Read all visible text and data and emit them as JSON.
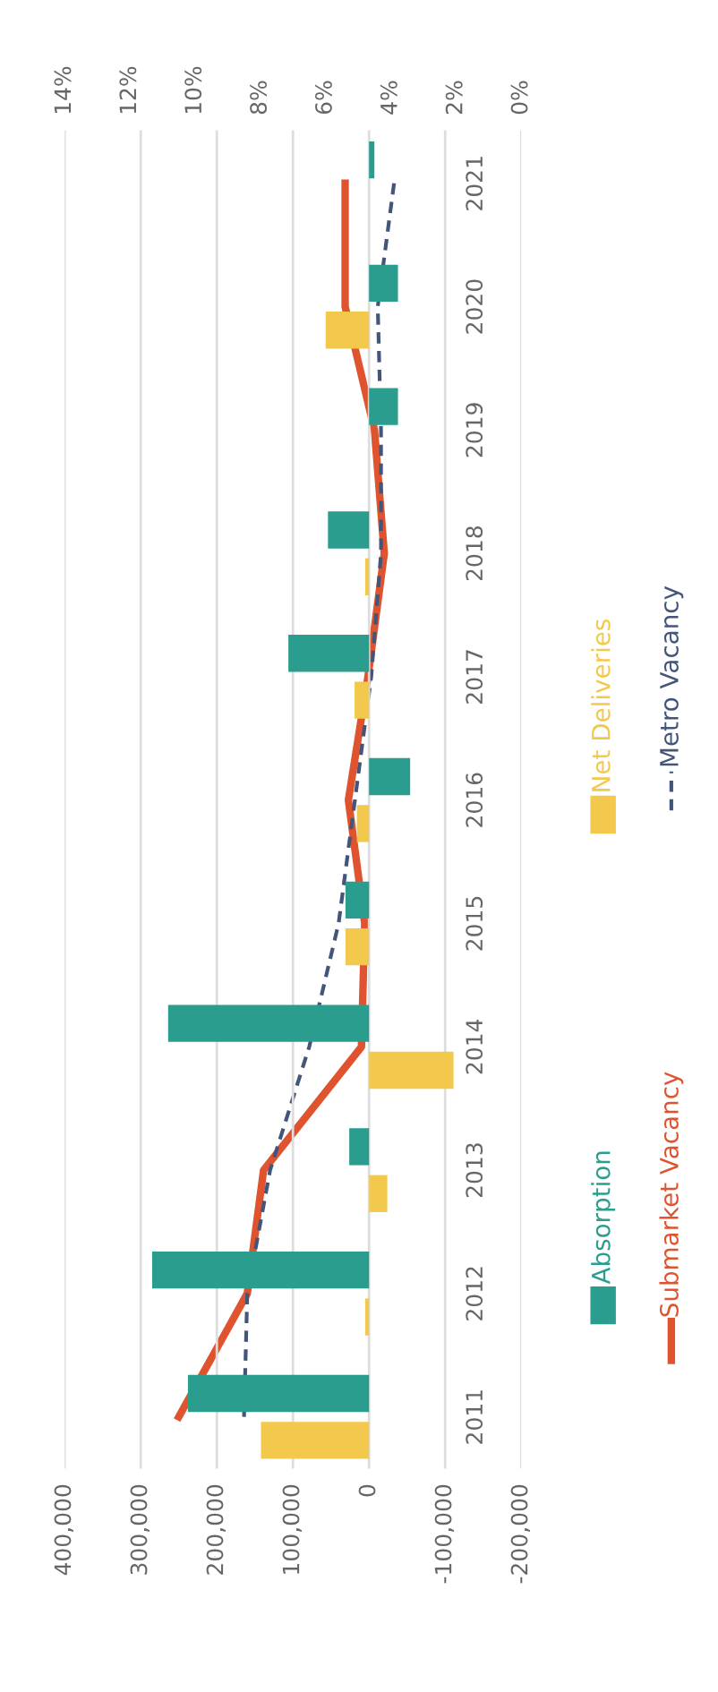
{
  "chart_data": {
    "type": "bar",
    "orientation": "horizontal",
    "categories": [
      "2021",
      "2020",
      "2019",
      "2018",
      "2017",
      "2016",
      "2015",
      "2014",
      "2013",
      "2012",
      "2011"
    ],
    "series": [
      {
        "name": "Absorption",
        "color": "#2a9d8f",
        "values": [
          -7000,
          -38000,
          -38000,
          54000,
          106000,
          -54000,
          31000,
          264000,
          26000,
          285000,
          238000
        ]
      },
      {
        "name": "Net Deliveries",
        "color": "#f2c94c",
        "values": [
          0,
          57000,
          0,
          5000,
          19000,
          16000,
          31000,
          -111000,
          -24000,
          5000,
          142000
        ]
      },
      {
        "name": "Submarket Vacancy",
        "type": "line",
        "axis": "x2",
        "color": "#e0532f",
        "line_style": "solid",
        "values": [
          5.4,
          5.4,
          4.5,
          4.2,
          4.7,
          5.3,
          4.8,
          4.9,
          7.9,
          8.4,
          10.5
        ]
      },
      {
        "name": "Metro Vacancy",
        "type": "line",
        "axis": "x2",
        "color": "#44557a",
        "line_style": "dashed",
        "values": [
          3.9,
          4.4,
          4.3,
          4.3,
          4.6,
          5.1,
          5.6,
          6.5,
          7.7,
          8.4,
          8.5
        ]
      }
    ],
    "xlim": [
      400000,
      -200000
    ],
    "xticks": [
      {
        "value": 400000,
        "label": "400,000"
      },
      {
        "value": 300000,
        "label": "300,000"
      },
      {
        "value": 200000,
        "label": "200,000"
      },
      {
        "value": 100000,
        "label": "100,000"
      },
      0,
      {
        "value": -100000,
        "label": "-100,000"
      },
      {
        "value": -200000,
        "label": "-200,000"
      }
    ],
    "x2lim": [
      14,
      0
    ],
    "x2ticks": [
      {
        "value": 14,
        "label": "14%"
      },
      {
        "value": 12,
        "label": "12%"
      },
      {
        "value": 10,
        "label": "10%"
      },
      {
        "value": 8,
        "label": "8%"
      },
      {
        "value": 6,
        "label": "6%"
      },
      {
        "value": 4,
        "label": "4%"
      },
      {
        "value": 2,
        "label": "2%"
      },
      {
        "value": 0,
        "label": "0%"
      }
    ],
    "grid": "x",
    "legend": "bottom",
    "marker": "none"
  }
}
